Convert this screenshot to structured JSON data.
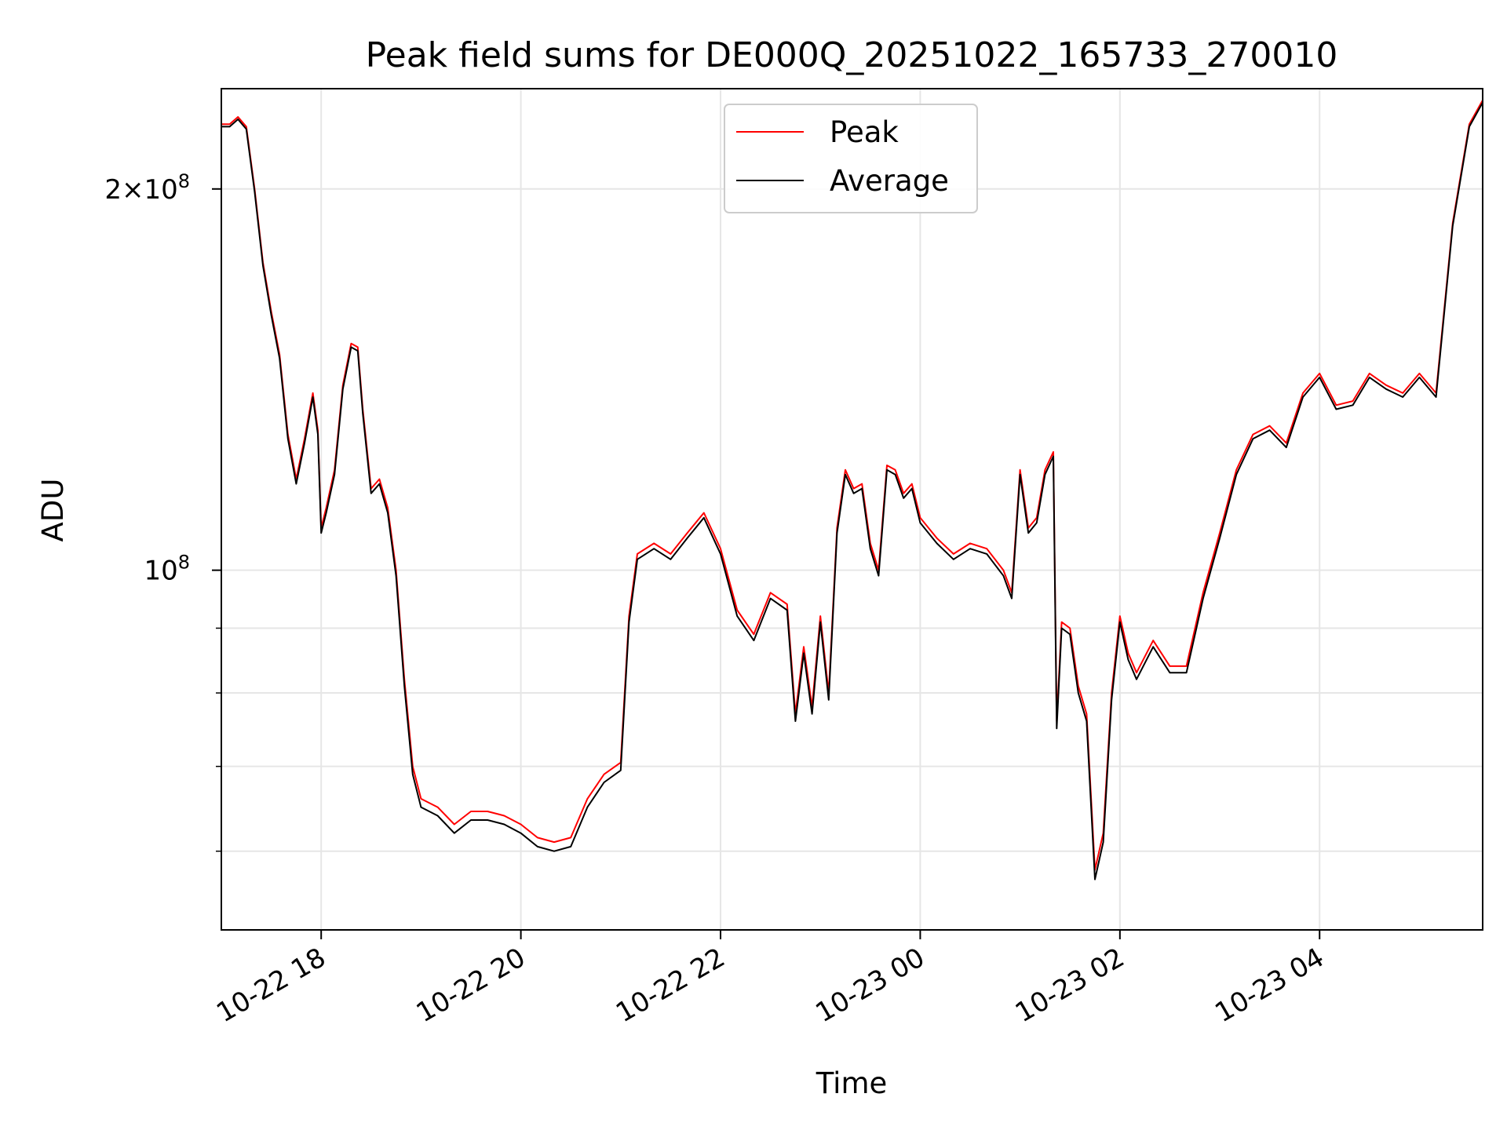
{
  "chart_data": {
    "type": "line",
    "title": "Peak field sums for DE000Q_20251022_165733_270010",
    "xlabel": "Time",
    "ylabel": "ADU",
    "y_scale": "log",
    "ylim": [
      52000000,
      240000000
    ],
    "xlim": [
      "2025-10-22 17:00",
      "2025-10-23 05:38"
    ],
    "grid": true,
    "legend_position": "upper center",
    "x_ticks": [
      {
        "time": "2025-10-22 18:00",
        "label": "10-22 18"
      },
      {
        "time": "2025-10-22 20:00",
        "label": "10-22 20"
      },
      {
        "time": "2025-10-22 22:00",
        "label": "10-22 22"
      },
      {
        "time": "2025-10-23 00:00",
        "label": "10-23 00"
      },
      {
        "time": "2025-10-23 02:00",
        "label": "10-23 02"
      },
      {
        "time": "2025-10-23 04:00",
        "label": "10-23 04"
      }
    ],
    "y_ticks_labeled": [
      {
        "value": 100000000,
        "base": "10",
        "exp": "8",
        "coef": ""
      },
      {
        "value": 200000000,
        "base": "10",
        "exp": "8",
        "coef": "2×"
      }
    ],
    "y_ticks_minor": [
      60000000,
      70000000,
      80000000,
      90000000
    ],
    "series": [
      {
        "name": "Peak",
        "color": "#ff0000",
        "points": [
          [
            "2025-10-22 17:00",
            225000000
          ],
          [
            "2025-10-22 17:05",
            225000000
          ],
          [
            "2025-10-22 17:10",
            228000000
          ],
          [
            "2025-10-22 17:15",
            224000000
          ],
          [
            "2025-10-22 17:20",
            200000000
          ],
          [
            "2025-10-22 17:25",
            175000000
          ],
          [
            "2025-10-22 17:30",
            160000000
          ],
          [
            "2025-10-22 17:35",
            148000000
          ],
          [
            "2025-10-22 17:40",
            128000000
          ],
          [
            "2025-10-22 17:45",
            118000000
          ],
          [
            "2025-10-22 17:50",
            127000000
          ],
          [
            "2025-10-22 17:55",
            138000000
          ],
          [
            "2025-10-22 17:58",
            129000000
          ],
          [
            "2025-10-22 18:00",
            108000000
          ],
          [
            "2025-10-22 18:03",
            112000000
          ],
          [
            "2025-10-22 18:08",
            120000000
          ],
          [
            "2025-10-22 18:13",
            140000000
          ],
          [
            "2025-10-22 18:18",
            151000000
          ],
          [
            "2025-10-22 18:22",
            150000000
          ],
          [
            "2025-10-22 18:25",
            134000000
          ],
          [
            "2025-10-22 18:30",
            116000000
          ],
          [
            "2025-10-22 18:35",
            118000000
          ],
          [
            "2025-10-22 18:40",
            112000000
          ],
          [
            "2025-10-22 18:45",
            100000000
          ],
          [
            "2025-10-22 18:50",
            82000000
          ],
          [
            "2025-10-22 18:55",
            70000000
          ],
          [
            "2025-10-22 19:00",
            66000000
          ],
          [
            "2025-10-22 19:10",
            65000000
          ],
          [
            "2025-10-22 19:20",
            63000000
          ],
          [
            "2025-10-22 19:30",
            64500000
          ],
          [
            "2025-10-22 19:40",
            64500000
          ],
          [
            "2025-10-22 19:50",
            64000000
          ],
          [
            "2025-10-22 20:00",
            63000000
          ],
          [
            "2025-10-22 20:10",
            61500000
          ],
          [
            "2025-10-22 20:20",
            61000000
          ],
          [
            "2025-10-22 20:30",
            61500000
          ],
          [
            "2025-10-22 20:40",
            66000000
          ],
          [
            "2025-10-22 20:50",
            69000000
          ],
          [
            "2025-10-22 21:00",
            70500000
          ],
          [
            "2025-10-22 21:05",
            92000000
          ],
          [
            "2025-10-22 21:10",
            103000000
          ],
          [
            "2025-10-22 21:20",
            105000000
          ],
          [
            "2025-10-22 21:30",
            103000000
          ],
          [
            "2025-10-22 21:40",
            107000000
          ],
          [
            "2025-10-22 21:50",
            111000000
          ],
          [
            "2025-10-22 22:00",
            104000000
          ],
          [
            "2025-10-22 22:10",
            93000000
          ],
          [
            "2025-10-22 22:20",
            89000000
          ],
          [
            "2025-10-22 22:30",
            96000000
          ],
          [
            "2025-10-22 22:40",
            94000000
          ],
          [
            "2025-10-22 22:45",
            77000000
          ],
          [
            "2025-10-22 22:50",
            87000000
          ],
          [
            "2025-10-22 22:55",
            78000000
          ],
          [
            "2025-10-22 23:00",
            92000000
          ],
          [
            "2025-10-22 23:05",
            80000000
          ],
          [
            "2025-10-22 23:10",
            108000000
          ],
          [
            "2025-10-22 23:15",
            120000000
          ],
          [
            "2025-10-22 23:20",
            116000000
          ],
          [
            "2025-10-22 23:25",
            117000000
          ],
          [
            "2025-10-22 23:30",
            105000000
          ],
          [
            "2025-10-22 23:35",
            100000000
          ],
          [
            "2025-10-22 23:40",
            121000000
          ],
          [
            "2025-10-22 23:45",
            120000000
          ],
          [
            "2025-10-22 23:50",
            115000000
          ],
          [
            "2025-10-22 23:55",
            117000000
          ],
          [
            "2025-10-23 00:00",
            110000000
          ],
          [
            "2025-10-23 00:10",
            106000000
          ],
          [
            "2025-10-23 00:20",
            103000000
          ],
          [
            "2025-10-23 00:30",
            105000000
          ],
          [
            "2025-10-23 00:40",
            104000000
          ],
          [
            "2025-10-23 00:50",
            100000000
          ],
          [
            "2025-10-23 00:55",
            96000000
          ],
          [
            "2025-10-23 01:00",
            120000000
          ],
          [
            "2025-10-23 01:05",
            108000000
          ],
          [
            "2025-10-23 01:10",
            110000000
          ],
          [
            "2025-10-23 01:15",
            120000000
          ],
          [
            "2025-10-23 01:20",
            124000000
          ],
          [
            "2025-10-23 01:22",
            76000000
          ],
          [
            "2025-10-23 01:25",
            91000000
          ],
          [
            "2025-10-23 01:30",
            90000000
          ],
          [
            "2025-10-23 01:35",
            81000000
          ],
          [
            "2025-10-23 01:40",
            77000000
          ],
          [
            "2025-10-23 01:45",
            58000000
          ],
          [
            "2025-10-23 01:50",
            62000000
          ],
          [
            "2025-10-23 01:55",
            80000000
          ],
          [
            "2025-10-23 02:00",
            92000000
          ],
          [
            "2025-10-23 02:05",
            86000000
          ],
          [
            "2025-10-23 02:10",
            83000000
          ],
          [
            "2025-10-23 02:20",
            88000000
          ],
          [
            "2025-10-23 02:30",
            84000000
          ],
          [
            "2025-10-23 02:40",
            84000000
          ],
          [
            "2025-10-23 02:50",
            96000000
          ],
          [
            "2025-10-23 03:00",
            107000000
          ],
          [
            "2025-10-23 03:10",
            120000000
          ],
          [
            "2025-10-23 03:20",
            128000000
          ],
          [
            "2025-10-23 03:30",
            130000000
          ],
          [
            "2025-10-23 03:40",
            126000000
          ],
          [
            "2025-10-23 03:50",
            138000000
          ],
          [
            "2025-10-23 04:00",
            143000000
          ],
          [
            "2025-10-23 04:10",
            135000000
          ],
          [
            "2025-10-23 04:20",
            136000000
          ],
          [
            "2025-10-23 04:30",
            143000000
          ],
          [
            "2025-10-23 04:40",
            140000000
          ],
          [
            "2025-10-23 04:50",
            138000000
          ],
          [
            "2025-10-23 05:00",
            143000000
          ],
          [
            "2025-10-23 05:10",
            138000000
          ],
          [
            "2025-10-23 05:20",
            188000000
          ],
          [
            "2025-10-23 05:30",
            225000000
          ],
          [
            "2025-10-23 05:38",
            235000000
          ]
        ]
      },
      {
        "name": "Average",
        "color": "#000000",
        "points": [
          [
            "2025-10-22 17:00",
            224000000
          ],
          [
            "2025-10-22 17:05",
            224000000
          ],
          [
            "2025-10-22 17:10",
            227000000
          ],
          [
            "2025-10-22 17:15",
            223000000
          ],
          [
            "2025-10-22 17:20",
            199000000
          ],
          [
            "2025-10-22 17:25",
            174000000
          ],
          [
            "2025-10-22 17:30",
            159000000
          ],
          [
            "2025-10-22 17:35",
            147000000
          ],
          [
            "2025-10-22 17:40",
            127000000
          ],
          [
            "2025-10-22 17:45",
            117000000
          ],
          [
            "2025-10-22 17:50",
            126000000
          ],
          [
            "2025-10-22 17:55",
            137000000
          ],
          [
            "2025-10-22 17:58",
            128000000
          ],
          [
            "2025-10-22 18:00",
            107000000
          ],
          [
            "2025-10-22 18:03",
            111000000
          ],
          [
            "2025-10-22 18:08",
            119000000
          ],
          [
            "2025-10-22 18:13",
            139000000
          ],
          [
            "2025-10-22 18:18",
            150000000
          ],
          [
            "2025-10-22 18:22",
            149000000
          ],
          [
            "2025-10-22 18:25",
            133000000
          ],
          [
            "2025-10-22 18:30",
            115000000
          ],
          [
            "2025-10-22 18:35",
            117000000
          ],
          [
            "2025-10-22 18:40",
            111000000
          ],
          [
            "2025-10-22 18:45",
            99000000
          ],
          [
            "2025-10-22 18:50",
            81000000
          ],
          [
            "2025-10-22 18:55",
            69000000
          ],
          [
            "2025-10-22 19:00",
            65000000
          ],
          [
            "2025-10-22 19:10",
            64000000
          ],
          [
            "2025-10-22 19:20",
            62000000
          ],
          [
            "2025-10-22 19:30",
            63500000
          ],
          [
            "2025-10-22 19:40",
            63500000
          ],
          [
            "2025-10-22 19:50",
            63000000
          ],
          [
            "2025-10-22 20:00",
            62000000
          ],
          [
            "2025-10-22 20:10",
            60500000
          ],
          [
            "2025-10-22 20:20",
            60000000
          ],
          [
            "2025-10-22 20:30",
            60500000
          ],
          [
            "2025-10-22 20:40",
            65000000
          ],
          [
            "2025-10-22 20:50",
            68000000
          ],
          [
            "2025-10-22 21:00",
            69500000
          ],
          [
            "2025-10-22 21:05",
            91000000
          ],
          [
            "2025-10-22 21:10",
            102000000
          ],
          [
            "2025-10-22 21:20",
            104000000
          ],
          [
            "2025-10-22 21:30",
            102000000
          ],
          [
            "2025-10-22 21:40",
            106000000
          ],
          [
            "2025-10-22 21:50",
            110000000
          ],
          [
            "2025-10-22 22:00",
            103000000
          ],
          [
            "2025-10-22 22:10",
            92000000
          ],
          [
            "2025-10-22 22:20",
            88000000
          ],
          [
            "2025-10-22 22:30",
            95000000
          ],
          [
            "2025-10-22 22:40",
            93000000
          ],
          [
            "2025-10-22 22:45",
            76000000
          ],
          [
            "2025-10-22 22:50",
            86000000
          ],
          [
            "2025-10-22 22:55",
            77000000
          ],
          [
            "2025-10-22 23:00",
            91000000
          ],
          [
            "2025-10-22 23:05",
            79000000
          ],
          [
            "2025-10-22 23:10",
            107000000
          ],
          [
            "2025-10-22 23:15",
            119000000
          ],
          [
            "2025-10-22 23:20",
            115000000
          ],
          [
            "2025-10-22 23:25",
            116000000
          ],
          [
            "2025-10-22 23:30",
            104000000
          ],
          [
            "2025-10-22 23:35",
            99000000
          ],
          [
            "2025-10-22 23:40",
            120000000
          ],
          [
            "2025-10-22 23:45",
            119000000
          ],
          [
            "2025-10-22 23:50",
            114000000
          ],
          [
            "2025-10-22 23:55",
            116000000
          ],
          [
            "2025-10-23 00:00",
            109000000
          ],
          [
            "2025-10-23 00:10",
            105000000
          ],
          [
            "2025-10-23 00:20",
            102000000
          ],
          [
            "2025-10-23 00:30",
            104000000
          ],
          [
            "2025-10-23 00:40",
            103000000
          ],
          [
            "2025-10-23 00:50",
            99000000
          ],
          [
            "2025-10-23 00:55",
            95000000
          ],
          [
            "2025-10-23 01:00",
            119000000
          ],
          [
            "2025-10-23 01:05",
            107000000
          ],
          [
            "2025-10-23 01:10",
            109000000
          ],
          [
            "2025-10-23 01:15",
            119000000
          ],
          [
            "2025-10-23 01:20",
            123000000
          ],
          [
            "2025-10-23 01:22",
            75000000
          ],
          [
            "2025-10-23 01:25",
            90000000
          ],
          [
            "2025-10-23 01:30",
            89000000
          ],
          [
            "2025-10-23 01:35",
            80000000
          ],
          [
            "2025-10-23 01:40",
            76000000
          ],
          [
            "2025-10-23 01:45",
            57000000
          ],
          [
            "2025-10-23 01:50",
            61000000
          ],
          [
            "2025-10-23 01:55",
            79000000
          ],
          [
            "2025-10-23 02:00",
            91000000
          ],
          [
            "2025-10-23 02:05",
            85000000
          ],
          [
            "2025-10-23 02:10",
            82000000
          ],
          [
            "2025-10-23 02:20",
            87000000
          ],
          [
            "2025-10-23 02:30",
            83000000
          ],
          [
            "2025-10-23 02:40",
            83000000
          ],
          [
            "2025-10-23 02:50",
            95000000
          ],
          [
            "2025-10-23 03:00",
            106000000
          ],
          [
            "2025-10-23 03:10",
            119000000
          ],
          [
            "2025-10-23 03:20",
            127000000
          ],
          [
            "2025-10-23 03:30",
            129000000
          ],
          [
            "2025-10-23 03:40",
            125000000
          ],
          [
            "2025-10-23 03:50",
            137000000
          ],
          [
            "2025-10-23 04:00",
            142000000
          ],
          [
            "2025-10-23 04:10",
            134000000
          ],
          [
            "2025-10-23 04:20",
            135000000
          ],
          [
            "2025-10-23 04:30",
            142000000
          ],
          [
            "2025-10-23 04:40",
            139000000
          ],
          [
            "2025-10-23 04:50",
            137000000
          ],
          [
            "2025-10-23 05:00",
            142000000
          ],
          [
            "2025-10-23 05:10",
            137000000
          ],
          [
            "2025-10-23 05:20",
            187000000
          ],
          [
            "2025-10-23 05:30",
            224000000
          ],
          [
            "2025-10-23 05:38",
            234000000
          ]
        ]
      }
    ]
  }
}
